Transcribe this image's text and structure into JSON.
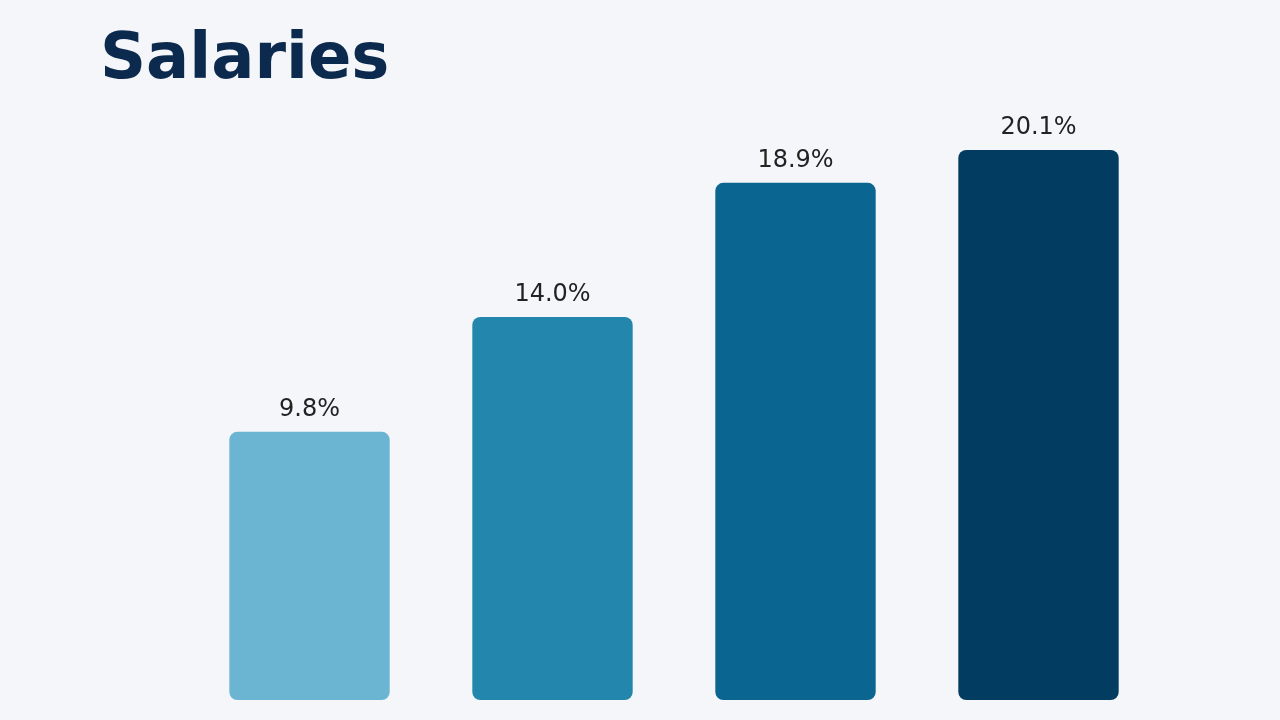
{
  "chart_data": {
    "type": "bar",
    "title": "Salaries",
    "categories": [
      null,
      null,
      null,
      null
    ],
    "values": [
      9.8,
      14.0,
      18.9,
      20.1
    ],
    "colors": [
      "#6bb5d3",
      "#2386ad",
      "#0a6690",
      "#033c61"
    ],
    "value_labels": [
      "9.8%",
      "14.0%",
      "18.9%",
      "20.1%"
    ]
  }
}
